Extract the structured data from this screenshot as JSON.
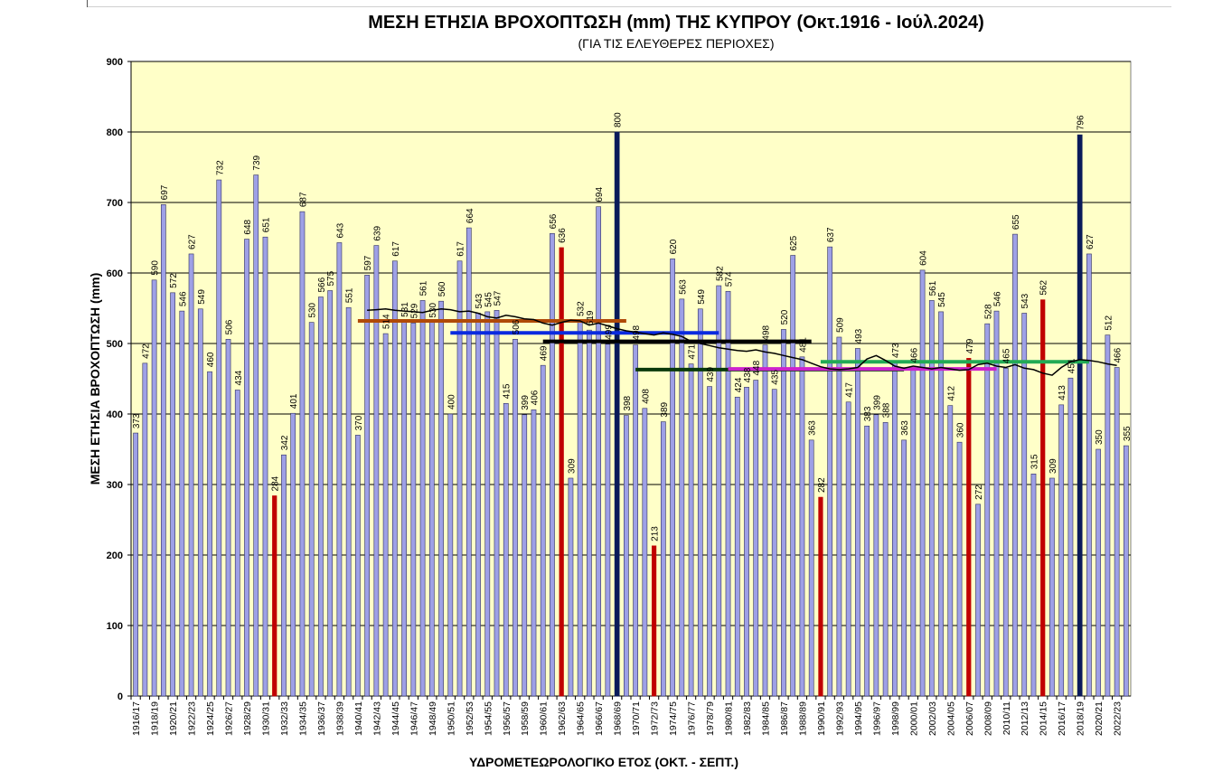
{
  "chart_data": {
    "type": "bar",
    "title": "ΜΕΣΗ  ΕΤΗΣΙΑ  ΒΡΟΧΟΠΤΩΣΗ (mm)  ΤΗΣ ΚΥΠΡΟΥ  (Οκτ.1916 -  Ιούλ.2024)",
    "subtitle": "(ΓΙΑ ΤΙΣ ΕΛΕΥΘΕΡΕΣ ΠΕΡΙΟΧΕΣ)",
    "xlabel": "ΥΔΡΟΜΕΤΕΩΡΟΛΟΓΙΚΟ ΕΤΟΣ (ΟΚΤ. - ΣΕΠΤ.)",
    "ylabel": "ΜΕΣΗ ΕΤΗΣΙΑ ΒΡΟΧΟΠΤΩΣΗ (mm)",
    "ylim": [
      0,
      900
    ],
    "yticks": [
      "0",
      "100",
      "200",
      "300",
      "400",
      "500",
      "600",
      "700",
      "800",
      "900"
    ],
    "grid": "horizontal",
    "start_year": 1916,
    "categories": [
      "1916/17",
      "1917/18",
      "1918/19",
      "1919/20",
      "1920/21",
      "1921/22",
      "1922/23",
      "1923/24",
      "1924/25",
      "1925/26",
      "1926/27",
      "1927/28",
      "1928/29",
      "1929/30",
      "1930/31",
      "1931/32",
      "1932/33",
      "1933/34",
      "1934/35",
      "1935/36",
      "1936/37",
      "1937/38",
      "1938/39",
      "1939/40",
      "1940/41",
      "1941/42",
      "1942/43",
      "1943/44",
      "1944/45",
      "1945/46",
      "1946/47",
      "1947/48",
      "1948/49",
      "1949/50",
      "1950/51",
      "1951/52",
      "1952/53",
      "1953/54",
      "1954/55",
      "1955/56",
      "1956/57",
      "1957/58",
      "1958/59",
      "1959/60",
      "1960/61",
      "1961/62",
      "1962/63",
      "1963/64",
      "1964/65",
      "1965/66",
      "1966/67",
      "1967/68",
      "1968/69",
      "1969/70",
      "1970/71",
      "1971/72",
      "1972/73",
      "1973/74",
      "1974/75",
      "1975/76",
      "1976/77",
      "1977/78",
      "1978/79",
      "1979/80",
      "1980/81",
      "1981/82",
      "1982/83",
      "1983/84",
      "1984/85",
      "1985/86",
      "1986/87",
      "1987/88",
      "1988/89",
      "1989/90",
      "1990/91",
      "1991/92",
      "1992/93",
      "1993/94",
      "1994/95",
      "1995/96",
      "1996/97",
      "1997/98",
      "1998/99",
      "1999/00",
      "2000/01",
      "2001/02",
      "2002/03",
      "2003/04",
      "2004/05",
      "2005/06",
      "2006/07",
      "2007/08",
      "2008/09",
      "2009/10",
      "2010/11",
      "2011/12",
      "2012/13",
      "2013/14",
      "2014/15",
      "2015/16",
      "2016/17",
      "2017/18",
      "2018/19",
      "2019/20",
      "2020/21",
      "2021/22",
      "2022/23",
      "2023/24"
    ],
    "values": [
      373,
      472,
      590,
      697,
      572,
      546,
      627,
      549,
      460,
      732,
      506,
      434,
      648,
      739,
      651,
      284,
      342,
      401,
      687,
      530,
      566,
      575,
      643,
      551,
      370,
      597,
      639,
      514,
      617,
      531,
      529,
      561,
      530,
      560,
      400,
      617,
      664,
      543,
      545,
      547,
      415,
      506,
      399,
      406,
      469,
      656,
      636,
      309,
      532,
      519,
      694,
      499,
      800,
      398,
      498,
      408,
      213,
      389,
      620,
      563,
      471,
      549,
      439,
      582,
      574,
      424,
      438,
      448,
      498,
      435,
      520,
      625,
      481,
      363,
      282,
      637,
      509,
      417,
      493,
      383,
      399,
      388,
      473,
      363,
      466,
      604,
      561,
      545,
      412,
      360,
      479,
      272,
      528,
      546,
      465,
      655,
      543,
      315,
      562,
      309,
      413,
      451,
      796,
      627,
      350,
      512,
      466,
      355
    ],
    "colors": {
      "normal": "#9ea0e6",
      "normal_border": "#303060",
      "red": "#c00000",
      "max": "#0a1a5a",
      "background": "#ffffc8",
      "moving_average": "#000000"
    },
    "red_bars": [
      "1931/32",
      "1962/63",
      "1972/73",
      "1990/91",
      "2006/07",
      "2014/15"
    ],
    "max_bars": [
      "1968/69",
      "2018/19"
    ],
    "moving_average": [
      547,
      548,
      549,
      547,
      546,
      545,
      544,
      547,
      549,
      548,
      545,
      546,
      543,
      538,
      536,
      540,
      538,
      535,
      534,
      529,
      526,
      530,
      533,
      532,
      526,
      529,
      525,
      521,
      518,
      516,
      514,
      512,
      515,
      513,
      510,
      503,
      500,
      497,
      494,
      492,
      490,
      489,
      491,
      488,
      486,
      483,
      480,
      477,
      472,
      467,
      464,
      463,
      464,
      466,
      478,
      483,
      476,
      468,
      465,
      468,
      466,
      464,
      466,
      464,
      462,
      463,
      470,
      472,
      468,
      466,
      470,
      465,
      463,
      458,
      455,
      466,
      474,
      477,
      476,
      474,
      471,
      469
    ],
    "moving_average_start": "1941/42",
    "period_means": [
      {
        "from": "1940/41",
        "to": "1969/70",
        "value": 532,
        "color": "#b04a08"
      },
      {
        "from": "1950/51",
        "to": "1979/80",
        "value": 515,
        "color": "#0a2adf"
      },
      {
        "from": "1960/61",
        "to": "1989/90",
        "value": 503,
        "color": "#000000"
      },
      {
        "from": "1970/71",
        "to": "1999/00",
        "value": 463,
        "color": "#0a3a0a"
      },
      {
        "from": "1980/81",
        "to": "2009/10",
        "value": 464,
        "color": "#cc22cc"
      },
      {
        "from": "1990/91",
        "to": "2019/20",
        "value": 474,
        "color": "#22aa55"
      }
    ]
  }
}
